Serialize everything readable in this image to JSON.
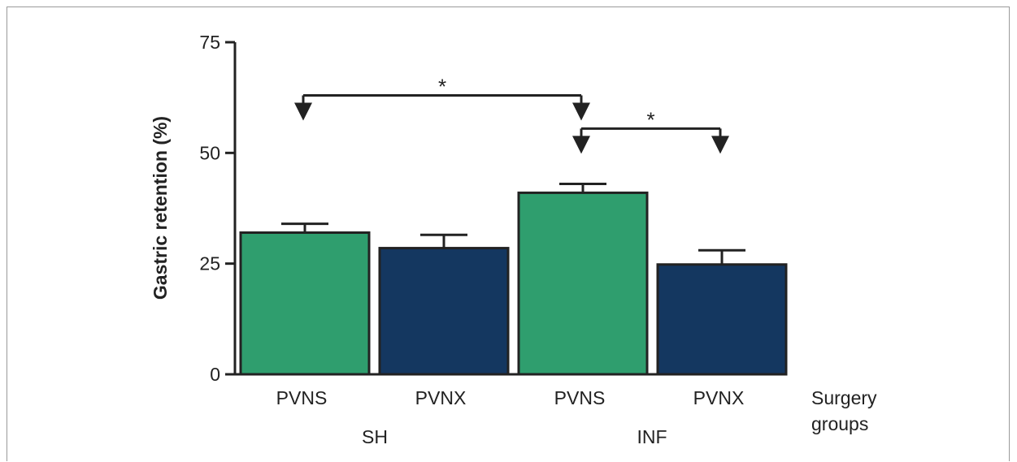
{
  "chart_data": {
    "type": "bar",
    "title": "",
    "ylabel": "Gastric retention (%)",
    "xlabel": [
      "Surgery",
      "groups"
    ],
    "ylim": [
      0,
      75
    ],
    "yticks": [
      "0",
      "25",
      "50",
      "75"
    ],
    "categories": [
      "PVNS",
      "PVNX",
      "PVNS",
      "PVNX"
    ],
    "groups": [
      {
        "label": "SH",
        "bars": [
          0,
          1
        ]
      },
      {
        "label": "INF",
        "bars": [
          2,
          3
        ]
      }
    ],
    "values": [
      32,
      28.5,
      41,
      24.8
    ],
    "errors": [
      2,
      3,
      2,
      3.2
    ],
    "colors": [
      "#2f9e6e",
      "#143760",
      "#2f9e6e",
      "#143760"
    ],
    "significance": [
      {
        "from": 0,
        "to": 2,
        "y": 63,
        "label": "*"
      },
      {
        "from": 2,
        "to": 3,
        "y": 55.5,
        "label": "*"
      }
    ]
  }
}
